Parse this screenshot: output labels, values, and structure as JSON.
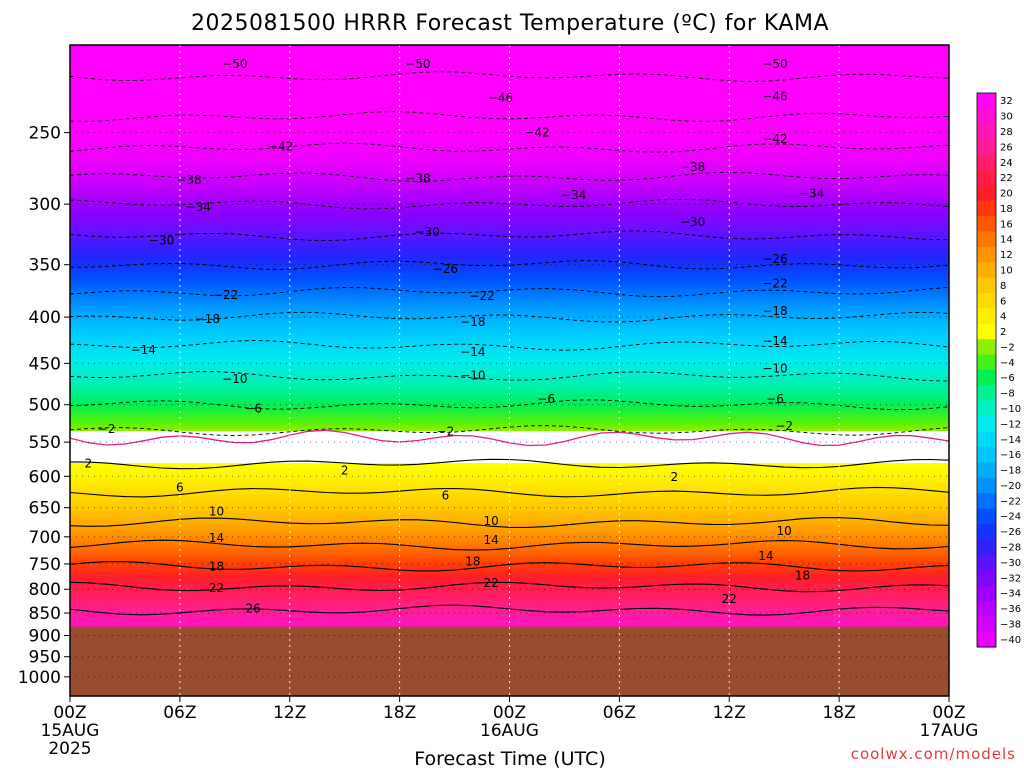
{
  "chart_data": {
    "type": "heatmap",
    "title": "2025081500 HRRR Forecast Temperature (ºC) for KAMA",
    "xlabel": "Forecast Time (UTC)",
    "ylabel": "",
    "credit": "coolwx.com/models",
    "x_ticks": [
      "00Z",
      "06Z",
      "12Z",
      "18Z",
      "00Z",
      "06Z",
      "12Z",
      "18Z",
      "00Z"
    ],
    "x_sublabels": [
      {
        "tick": 0,
        "lines": [
          "15AUG",
          "2025"
        ]
      },
      {
        "tick": 4,
        "lines": [
          "16AUG"
        ]
      },
      {
        "tick": 8,
        "lines": [
          "17AUG"
        ]
      }
    ],
    "x_hours": [
      0,
      6,
      12,
      18,
      24,
      30,
      36,
      42,
      48
    ],
    "xlim": [
      0,
      48
    ],
    "y_ticks": [
      250,
      300,
      350,
      400,
      450,
      500,
      550,
      600,
      650,
      700,
      750,
      800,
      850,
      900,
      950,
      1000
    ],
    "ylim": [
      200,
      1050
    ],
    "y_scale": "log-pressure",
    "surface_pressure": 880,
    "grid": true,
    "colorbar": {
      "labels": [
        "32",
        "30",
        "28",
        "26",
        "24",
        "22",
        "20",
        "18",
        "16",
        "14",
        "12",
        "10",
        "8",
        "6",
        "4",
        "2",
        "−2",
        "−4",
        "−6",
        "−8",
        "−10",
        "−12",
        "−14",
        "−16",
        "−18",
        "−20",
        "−22",
        "−24",
        "−26",
        "−28",
        "−30",
        "−32",
        "−34",
        "−36",
        "−38",
        "−40"
      ],
      "stops": [
        {
          "t": -52,
          "color": "#ff00ff"
        },
        {
          "t": -44,
          "color": "#ff00ff"
        },
        {
          "t": -40,
          "color": "#e800ff"
        },
        {
          "t": -36,
          "color": "#bb00ff"
        },
        {
          "t": -33,
          "color": "#8e00ff"
        },
        {
          "t": -30,
          "color": "#5a14ff"
        },
        {
          "t": -27,
          "color": "#1e28ff"
        },
        {
          "t": -24,
          "color": "#0050ff"
        },
        {
          "t": -20,
          "color": "#0093ff"
        },
        {
          "t": -16,
          "color": "#00c8ff"
        },
        {
          "t": -12,
          "color": "#00ecec"
        },
        {
          "t": -9,
          "color": "#00f0b4"
        },
        {
          "t": -6,
          "color": "#00f050"
        },
        {
          "t": -3,
          "color": "#64f000"
        },
        {
          "t": -2,
          "color": "#8ef000"
        },
        {
          "t": -1.99,
          "color": "#ffffff"
        },
        {
          "t": 1.99,
          "color": "#ffffff"
        },
        {
          "t": 2,
          "color": "#ffff00"
        },
        {
          "t": 5,
          "color": "#ffe600"
        },
        {
          "t": 8,
          "color": "#ffc800"
        },
        {
          "t": 11,
          "color": "#ffa000"
        },
        {
          "t": 14,
          "color": "#ff7800"
        },
        {
          "t": 17,
          "color": "#ff4600"
        },
        {
          "t": 20,
          "color": "#ff1e28"
        },
        {
          "t": 23,
          "color": "#ff1e5a"
        },
        {
          "t": 26,
          "color": "#ff1e96"
        },
        {
          "t": 29,
          "color": "#ff14c8"
        },
        {
          "t": 33,
          "color": "#ff00ff"
        }
      ]
    },
    "profile": [
      {
        "p": 200,
        "t": -52
      },
      {
        "p": 225,
        "t": -49
      },
      {
        "p": 250,
        "t": -44
      },
      {
        "p": 275,
        "t": -39
      },
      {
        "p": 300,
        "t": -34
      },
      {
        "p": 325,
        "t": -30
      },
      {
        "p": 350,
        "t": -26
      },
      {
        "p": 375,
        "t": -22
      },
      {
        "p": 400,
        "t": -18
      },
      {
        "p": 430,
        "t": -14
      },
      {
        "p": 465,
        "t": -10
      },
      {
        "p": 500,
        "t": -6
      },
      {
        "p": 530,
        "t": -2.5
      },
      {
        "p": 550,
        "t": 0
      },
      {
        "p": 575,
        "t": 1.5
      },
      {
        "p": 600,
        "t": 3.5
      },
      {
        "p": 625,
        "t": 6
      },
      {
        "p": 650,
        "t": 8
      },
      {
        "p": 675,
        "t": 10
      },
      {
        "p": 700,
        "t": 12.5
      },
      {
        "p": 725,
        "t": 15
      },
      {
        "p": 750,
        "t": 17.5
      },
      {
        "p": 775,
        "t": 20
      },
      {
        "p": 800,
        "t": 22.5
      },
      {
        "p": 825,
        "t": 24.5
      },
      {
        "p": 850,
        "t": 26.5
      },
      {
        "p": 880,
        "t": 29
      }
    ],
    "contour_labels": [
      {
        "x": 9,
        "p": 210,
        "text": "−50"
      },
      {
        "x": 19,
        "p": 210,
        "text": "−50"
      },
      {
        "x": 38.5,
        "p": 210,
        "text": "−50"
      },
      {
        "x": 23.5,
        "p": 229,
        "text": "−46"
      },
      {
        "x": 38.5,
        "p": 228,
        "text": "−46"
      },
      {
        "x": 11.5,
        "p": 259,
        "text": "−42"
      },
      {
        "x": 25.5,
        "p": 250,
        "text": "−42"
      },
      {
        "x": 38.5,
        "p": 254,
        "text": "−42"
      },
      {
        "x": 6.5,
        "p": 282,
        "text": "−38"
      },
      {
        "x": 19,
        "p": 281,
        "text": "−38"
      },
      {
        "x": 34,
        "p": 273,
        "text": "−38"
      },
      {
        "x": 7,
        "p": 302,
        "text": "−34"
      },
      {
        "x": 27.5,
        "p": 293,
        "text": "−34"
      },
      {
        "x": 40.5,
        "p": 292,
        "text": "−34"
      },
      {
        "x": 5,
        "p": 329,
        "text": "−30"
      },
      {
        "x": 19.5,
        "p": 322,
        "text": "−30"
      },
      {
        "x": 34,
        "p": 314,
        "text": "−30"
      },
      {
        "x": 20.5,
        "p": 354,
        "text": "−26"
      },
      {
        "x": 38.5,
        "p": 345,
        "text": "−26"
      },
      {
        "x": 8.5,
        "p": 378,
        "text": "−22"
      },
      {
        "x": 22.5,
        "p": 379,
        "text": "−22"
      },
      {
        "x": 38.5,
        "p": 367,
        "text": "−22"
      },
      {
        "x": 7.5,
        "p": 402,
        "text": "−18"
      },
      {
        "x": 22,
        "p": 405,
        "text": "−18"
      },
      {
        "x": 38.5,
        "p": 394,
        "text": "−18"
      },
      {
        "x": 4,
        "p": 435,
        "text": "−14"
      },
      {
        "x": 22,
        "p": 437,
        "text": "−14"
      },
      {
        "x": 38.5,
        "p": 425,
        "text": "−14"
      },
      {
        "x": 9,
        "p": 468,
        "text": "−10"
      },
      {
        "x": 22,
        "p": 464,
        "text": "−10"
      },
      {
        "x": 38.5,
        "p": 456,
        "text": "−10"
      },
      {
        "x": 10,
        "p": 505,
        "text": "−6"
      },
      {
        "x": 26,
        "p": 493,
        "text": "−6"
      },
      {
        "x": 38.5,
        "p": 493,
        "text": "−6"
      },
      {
        "x": 2,
        "p": 532,
        "text": "−2"
      },
      {
        "x": 20.5,
        "p": 535,
        "text": "−2"
      },
      {
        "x": 39,
        "p": 528,
        "text": "−2"
      },
      {
        "x": 1,
        "p": 581,
        "text": "2"
      },
      {
        "x": 15,
        "p": 591,
        "text": "2"
      },
      {
        "x": 33,
        "p": 601,
        "text": "2"
      },
      {
        "x": 6,
        "p": 617,
        "text": "6"
      },
      {
        "x": 20.5,
        "p": 630,
        "text": "6"
      },
      {
        "x": 8,
        "p": 656,
        "text": "10"
      },
      {
        "x": 23,
        "p": 672,
        "text": "10"
      },
      {
        "x": 39,
        "p": 690,
        "text": "10"
      },
      {
        "x": 8,
        "p": 702,
        "text": "14"
      },
      {
        "x": 23,
        "p": 706,
        "text": "14"
      },
      {
        "x": 38,
        "p": 735,
        "text": "14"
      },
      {
        "x": 8,
        "p": 755,
        "text": "18"
      },
      {
        "x": 22,
        "p": 745,
        "text": "18"
      },
      {
        "x": 40,
        "p": 772,
        "text": "18"
      },
      {
        "x": 8,
        "p": 797,
        "text": "22"
      },
      {
        "x": 23,
        "p": 787,
        "text": "22"
      },
      {
        "x": 36,
        "p": 820,
        "text": "22"
      },
      {
        "x": 10,
        "p": 840,
        "text": "26"
      }
    ]
  }
}
